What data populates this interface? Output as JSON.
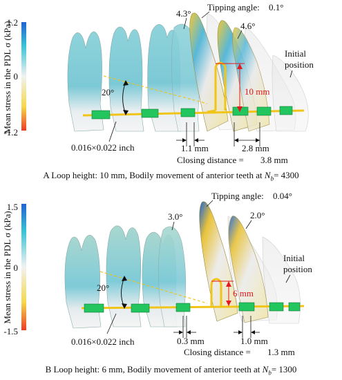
{
  "colors": {
    "scale_top": "#1e63d6",
    "scale_mid_high": "#38c4d6",
    "scale_mid": "#f2f2f2",
    "scale_mid_low": "#f5d84a",
    "scale_bottom": "#ef3b24",
    "wire": "#f0c419",
    "bracket": "#22c55e",
    "annotation_red": "#e4181d"
  },
  "shared": {
    "colorbar_label": "Mean stress in the PDL σ (kPa)",
    "colorbar_zero": "0",
    "wire_size": "0.016×0.022 inch",
    "angle_label": "20°",
    "tipping_prefix": "Tipping angle:",
    "initial_position_line1": "Initial",
    "initial_position_line2": "position",
    "closing_prefix": "Closing distance = "
  },
  "panel_a": {
    "colorbar_max": "1.2",
    "colorbar_min": "-1.2",
    "tipping_value": "0.1°",
    "angle_left": "4.3°",
    "angle_right": "4.6°",
    "loop_height": "10 mm",
    "gap_small": "1.1 mm",
    "gap_large": "2.8 mm",
    "closing_distance": "3.8 mm",
    "caption_letter": "A",
    "caption_text": "Loop height: 10 mm,  Bodily movement of anterior teeth at",
    "caption_n_label": "N",
    "caption_n_sub": "b",
    "caption_n_value": "= 4300"
  },
  "panel_b": {
    "colorbar_max": "1.5",
    "colorbar_min": "-1.5",
    "tipping_value": "0.04°",
    "angle_left": "3.0°",
    "angle_right": "2.0°",
    "loop_height": "6 mm",
    "gap_small": "0.3 mm",
    "gap_large": "1.0 mm",
    "closing_distance": "1.3 mm",
    "caption_letter": "B",
    "caption_text": "Loop height: 6 mm,  Bodily movement of anterior teeth at",
    "caption_n_label": "N",
    "caption_n_sub": "b",
    "caption_n_value": "= 1300"
  }
}
